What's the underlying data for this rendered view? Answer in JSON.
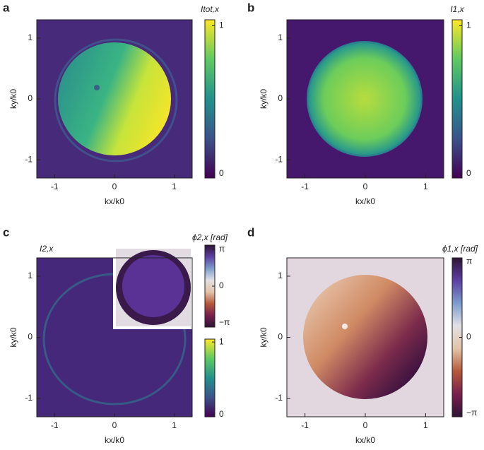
{
  "chart_data": [
    {
      "panel": "a",
      "type": "heatmap",
      "xlabel": "kx/k0",
      "ylabel": "ky/k0",
      "xlim": [
        -1.3,
        1.3
      ],
      "xticks": [
        -1,
        0,
        1
      ],
      "ylim": [
        -1.3,
        1.3
      ],
      "yticks": [
        -1,
        0,
        1
      ],
      "colorbars": [
        {
          "label": "Itot,x",
          "lim": [
            -0.03,
            1.04
          ],
          "ticks": [
            0,
            1
          ],
          "colors": [
            "#440154",
            "#3b528b",
            "#21918c",
            "#5ec962",
            "#fde725"
          ]
        }
      ]
    },
    {
      "panel": "b",
      "type": "heatmap",
      "xlabel": "kx/k0",
      "ylabel": "ky/k0",
      "xlim": [
        -1.3,
        1.3
      ],
      "xticks": [
        -1,
        0,
        1
      ],
      "ylim": [
        -1.3,
        1.3
      ],
      "yticks": [
        -1,
        0,
        1
      ],
      "colorbars": [
        {
          "label": "I1,x",
          "lim": [
            -0.03,
            1.04
          ],
          "ticks": [
            0,
            1
          ],
          "colors": [
            "#440154",
            "#3b528b",
            "#21918c",
            "#5ec962",
            "#fde725"
          ]
        }
      ]
    },
    {
      "panel": "c",
      "type": "heatmap",
      "xlabel": "kx/k0",
      "ylabel": "ky/k0",
      "xlim": [
        -1.3,
        1.3
      ],
      "xticks": [
        -1,
        0,
        1
      ],
      "ylim": [
        -1.3,
        1.3
      ],
      "yticks": [
        -1,
        0,
        1
      ],
      "colorbars": [
        {
          "label": "ϕ2,x [rad]",
          "lim": [
            -3.5,
            3.5
          ],
          "ticks": [
            {
              "value": 3.14159,
              "label": "π"
            },
            0,
            {
              "value": -3.14159,
              "label": "−π"
            }
          ],
          "colors": [
            "#2f1436",
            "#7a1f4e",
            "#b5583a",
            "#e2c3a8",
            "#e2e0e4",
            "#7d9ccb",
            "#5d3fa4",
            "#2f1436"
          ]
        },
        {
          "label": "I2,x",
          "lim": [
            -0.03,
            1.04
          ],
          "ticks": [
            0,
            1
          ],
          "colors": [
            "#440154",
            "#3b528b",
            "#21918c",
            "#5ec962",
            "#fde725"
          ]
        }
      ]
    },
    {
      "panel": "d",
      "type": "heatmap",
      "xlabel": "kx/k0",
      "ylabel": "ky/k0",
      "xlim": [
        -1.3,
        1.3
      ],
      "xticks": [
        -1,
        0,
        1
      ],
      "ylim": [
        -1.3,
        1.3
      ],
      "yticks": [
        -1,
        0,
        1
      ],
      "colorbars": [
        {
          "label": "ϕ1,x [rad]",
          "lim": [
            -3.3,
            3.3
          ],
          "ticks": [
            {
              "value": 3.14159,
              "label": "π"
            },
            0,
            {
              "value": -3.14159,
              "label": "−π"
            }
          ],
          "colors": [
            "#2f1436",
            "#7a1f4e",
            "#b5583a",
            "#e2c3a8",
            "#e2e0e4",
            "#7d9ccb",
            "#5d3fa4",
            "#2f1436"
          ]
        }
      ]
    }
  ]
}
